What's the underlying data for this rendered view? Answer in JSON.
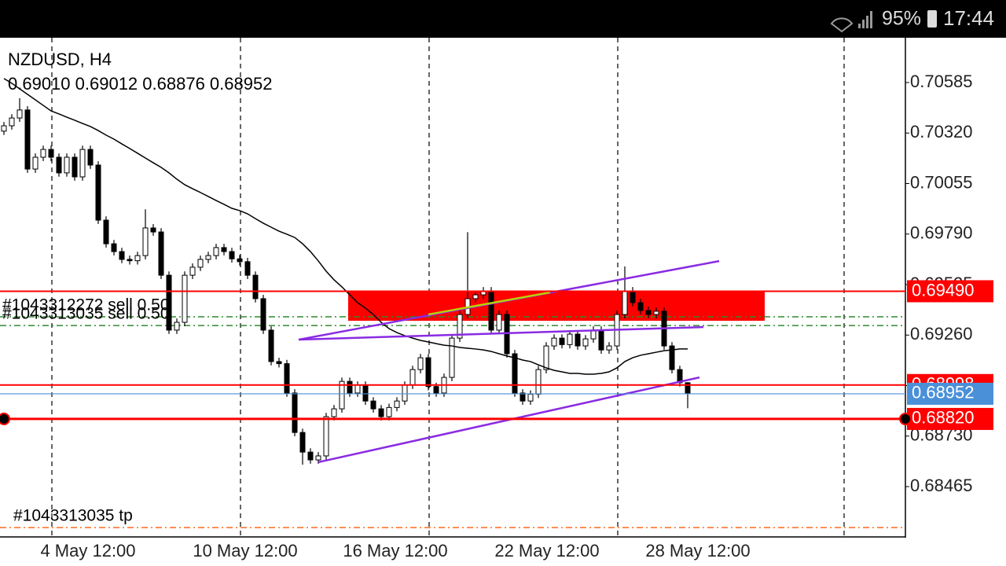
{
  "status_bar": {
    "battery": "95%",
    "time": "17:44"
  },
  "chart_data": {
    "type": "candlestick",
    "symbol": "NZDUSD, H4",
    "ohlc": "0.69010 0.69012 0.68876 0.68952",
    "open": [
      0.7033,
      0.70358,
      0.70399,
      0.70441,
      0.70131,
      0.70193,
      0.70234,
      0.70193,
      0.70111,
      0.70193,
      0.7009,
      0.70234,
      0.70152,
      0.69863,
      0.69739,
      0.69698,
      0.69657,
      0.6965,
      0.69677,
      0.69822,
      0.69801,
      0.69574,
      0.69286,
      0.69327,
      0.69574,
      0.69616,
      0.69657,
      0.69677,
      0.69719,
      0.69698,
      0.6966,
      0.69645,
      0.69574,
      0.69451,
      0.69286,
      0.69121,
      0.6911,
      0.68956,
      0.68749,
      0.68646,
      0.68605,
      0.68626,
      0.68832,
      0.68873,
      0.69017,
      0.68956,
      0.68997,
      0.68914,
      0.68873,
      0.68832,
      0.6888,
      0.68914,
      0.68997,
      0.69079,
      0.69141,
      0.6899,
      0.68956,
      0.69038,
      0.69244,
      0.69368,
      0.69451,
      0.69471,
      0.69492,
      0.69286,
      0.69368,
      0.69162,
      0.68956,
      0.68914,
      0.6895,
      0.69079,
      0.69203,
      0.69244,
      0.6921,
      0.69265,
      0.69203,
      0.6924,
      0.69286,
      0.69182,
      0.69203,
      0.69368,
      0.69492,
      0.6943,
      0.69389,
      0.69368,
      0.69385,
      0.69203,
      0.69079,
      0.6901
    ],
    "high": [
      0.70378,
      0.70419,
      0.70503,
      0.70461,
      0.70213,
      0.70254,
      0.70254,
      0.70213,
      0.70213,
      0.70213,
      0.70254,
      0.70254,
      0.70172,
      0.69883,
      0.69759,
      0.69718,
      0.69677,
      0.69697,
      0.6992,
      0.69842,
      0.69821,
      0.69594,
      0.69347,
      0.69594,
      0.69636,
      0.69677,
      0.69697,
      0.69739,
      0.69739,
      0.69718,
      0.6968,
      0.69665,
      0.69594,
      0.69471,
      0.69306,
      0.69141,
      0.6913,
      0.68976,
      0.68769,
      0.68666,
      0.68646,
      0.68852,
      0.68893,
      0.69037,
      0.69037,
      0.69017,
      0.69017,
      0.68934,
      0.68893,
      0.689,
      0.68934,
      0.69017,
      0.69099,
      0.69161,
      0.69161,
      0.6901,
      0.69058,
      0.69264,
      0.69388,
      0.698,
      0.69491,
      0.69512,
      0.69512,
      0.69388,
      0.69388,
      0.69182,
      0.68976,
      0.6897,
      0.69099,
      0.69223,
      0.69264,
      0.69264,
      0.69285,
      0.69285,
      0.6926,
      0.69306,
      0.69306,
      0.69223,
      0.69388,
      0.6962,
      0.69512,
      0.6945,
      0.69409,
      0.69405,
      0.69405,
      0.69223,
      0.69099,
      0.69012
    ],
    "low": [
      0.7031,
      0.70338,
      0.70379,
      0.70111,
      0.70111,
      0.70173,
      0.70173,
      0.70091,
      0.70091,
      0.7007,
      0.7007,
      0.70132,
      0.69843,
      0.69719,
      0.69678,
      0.69637,
      0.6963,
      0.6963,
      0.69657,
      0.69781,
      0.69554,
      0.69266,
      0.69266,
      0.69307,
      0.69554,
      0.69596,
      0.69637,
      0.69657,
      0.69678,
      0.6964,
      0.69625,
      0.69554,
      0.69431,
      0.69266,
      0.69101,
      0.6909,
      0.68936,
      0.68729,
      0.6858,
      0.68585,
      0.68585,
      0.68606,
      0.68812,
      0.68853,
      0.68936,
      0.68936,
      0.68894,
      0.68853,
      0.68812,
      0.68812,
      0.6886,
      0.68894,
      0.68977,
      0.69059,
      0.6897,
      0.68936,
      0.68936,
      0.69018,
      0.69224,
      0.69348,
      0.69431,
      0.69451,
      0.69266,
      0.69266,
      0.69142,
      0.68936,
      0.68894,
      0.68894,
      0.6893,
      0.69059,
      0.69183,
      0.6919,
      0.6919,
      0.69183,
      0.69183,
      0.6922,
      0.69162,
      0.69162,
      0.69183,
      0.69348,
      0.6941,
      0.69369,
      0.69348,
      0.69348,
      0.69183,
      0.69059,
      0.6899,
      0.68876
    ],
    "close": [
      0.70358,
      0.70399,
      0.70441,
      0.70131,
      0.70193,
      0.70234,
      0.70193,
      0.70111,
      0.70193,
      0.7009,
      0.70234,
      0.70152,
      0.69863,
      0.69739,
      0.69698,
      0.69657,
      0.6965,
      0.69677,
      0.69822,
      0.69801,
      0.69574,
      0.69286,
      0.69327,
      0.69574,
      0.69616,
      0.69657,
      0.69677,
      0.69719,
      0.69698,
      0.6966,
      0.69645,
      0.69574,
      0.69451,
      0.69286,
      0.69121,
      0.6911,
      0.68956,
      0.68749,
      0.68646,
      0.68605,
      0.68626,
      0.68832,
      0.68873,
      0.69017,
      0.68956,
      0.68997,
      0.68914,
      0.68873,
      0.68832,
      0.6888,
      0.68914,
      0.68997,
      0.69079,
      0.69141,
      0.6899,
      0.68956,
      0.69038,
      0.69244,
      0.69368,
      0.69451,
      0.69471,
      0.69492,
      0.69286,
      0.69368,
      0.69162,
      0.68956,
      0.68914,
      0.6895,
      0.69079,
      0.69203,
      0.69244,
      0.6921,
      0.69265,
      0.69203,
      0.6924,
      0.69286,
      0.69182,
      0.69203,
      0.69368,
      0.69492,
      0.6943,
      0.69389,
      0.69368,
      0.69385,
      0.69203,
      0.69079,
      0.6901,
      0.68952
    ],
    "ma": [
      0.70606,
      0.70581,
      0.70552,
      0.70523,
      0.70494,
      0.70465,
      0.70436,
      0.7042,
      0.70403,
      0.70387,
      0.7037,
      0.70354,
      0.70333,
      0.70309,
      0.70288,
      0.70263,
      0.70239,
      0.70214,
      0.70189,
      0.70164,
      0.7014,
      0.70111,
      0.70078,
      0.70049,
      0.70028,
      0.70008,
      0.69987,
      0.69966,
      0.69946,
      0.69925,
      0.69913,
      0.69896,
      0.69871,
      0.69847,
      0.69826,
      0.69805,
      0.69789,
      0.69772,
      0.69739,
      0.69698,
      0.69649,
      0.69595,
      0.6955,
      0.69513,
      0.69471,
      0.6943,
      0.69401,
      0.69368,
      0.69327,
      0.69294,
      0.69273,
      0.69257,
      0.69244,
      0.69232,
      0.69224,
      0.69215,
      0.69207,
      0.69203,
      0.69195,
      0.69191,
      0.69187,
      0.69182,
      0.69174,
      0.69162,
      0.6915,
      0.69141,
      0.69129,
      0.69121,
      0.69104,
      0.69088,
      0.69075,
      0.69067,
      0.69059,
      0.69059,
      0.69055,
      0.69055,
      0.69059,
      0.69067,
      0.69088,
      0.69121,
      0.69141,
      0.69154,
      0.69162,
      0.6917,
      0.69178,
      0.69182,
      0.69187,
      0.69187
    ],
    "ylim": [
      0.68201,
      0.7082
    ],
    "yticks": [
      {
        "value": 0.70585,
        "label": "0.70585"
      },
      {
        "value": 0.7032,
        "label": "0.70320"
      },
      {
        "value": 0.70055,
        "label": "0.70055"
      },
      {
        "value": 0.6979,
        "label": "0.69790"
      },
      {
        "value": 0.69525,
        "label": "0.69525"
      },
      {
        "value": 0.6926,
        "label": "0.69260"
      },
      {
        "value": 0.68995,
        "label": "0.68995"
      },
      {
        "value": 0.6873,
        "label": "0.68730"
      },
      {
        "value": 0.68465,
        "label": "0.68465"
      }
    ],
    "x_labels": [
      "4 May 12:00",
      "10 May 12:00",
      "16 May 12:00",
      "22 May 12:00",
      "28 May 12:00"
    ],
    "zone": {
      "top": 0.6949,
      "bottom": 0.69335,
      "color": "#ff0000"
    },
    "price_lines": [
      {
        "value": 0.6949,
        "label": "0.69490",
        "color": "#ff0000"
      },
      {
        "value": 0.68998,
        "label": "0.68998",
        "color": "#ff0000"
      },
      {
        "value": 0.68952,
        "label": "0.68952",
        "color": "#4a90d9"
      },
      {
        "value": 0.6882,
        "label": "0.68820",
        "color": "#ff0000"
      }
    ],
    "orders": [
      {
        "label": "#1043312272 sell 0.50",
        "value": 0.69356,
        "color": "#2e8b2e"
      },
      {
        "label": "#1043313035 sell 0.50",
        "value": 0.6931,
        "color": "#2e8b2e"
      },
      {
        "label": "#1043313035 tp",
        "value": 0.6825,
        "color": "#ff6a1a"
      }
    ],
    "trendlines": [
      {
        "from": 0.69236,
        "to": 0.69648,
        "color": "#8a2be2"
      },
      {
        "from": 0.69236,
        "to": 0.69302,
        "color": "#8a2be2"
      },
      {
        "from": 0.68593,
        "to": 0.69038,
        "color": "#8a2be2"
      },
      {
        "from": 0.69368,
        "to": 0.69484,
        "color": "#b8d400"
      }
    ]
  }
}
